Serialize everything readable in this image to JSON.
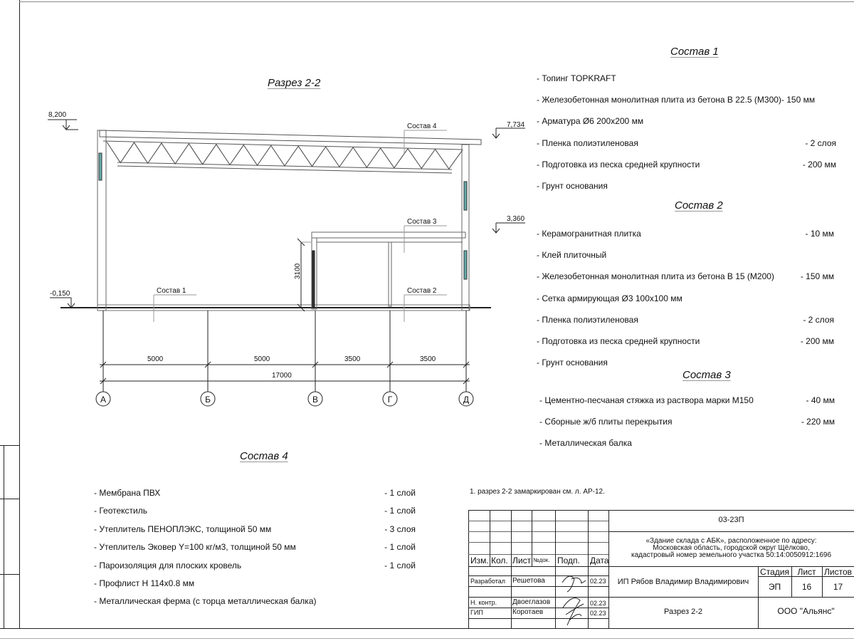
{
  "section_title": "Разрез 2-2",
  "drawing": {
    "levels": {
      "top": "8,200",
      "roof_right": "7,734",
      "mezzanine": "3,360",
      "ground": "-0,150"
    },
    "callouts": [
      "Состав 1",
      "Состав 2",
      "Состав 3",
      "Состав 4"
    ],
    "height_dim": "3100",
    "span_dims": [
      "5000",
      "5000",
      "3500",
      "3500"
    ],
    "total_dim": "17000",
    "axes": [
      "А",
      "Б",
      "В",
      "Г",
      "Д"
    ]
  },
  "composition_1": {
    "title": "Состав 1",
    "items": [
      {
        "name": "- Топинг TOPKRAFT",
        "value": ""
      },
      {
        "name": "- Железобетонная  монолитная плита из бетона  В 22.5 (М300)- 150 мм",
        "value": ""
      },
      {
        "name": "- Арматура Ø6 200х200 мм",
        "value": ""
      },
      {
        "name": "- Пленка полиэтиленовая",
        "value": "-  2 слоя"
      },
      {
        "name": "- Подготовка из песка средней  крупности",
        "value": "- 200 мм"
      },
      {
        "name": "- Грунт основания",
        "value": ""
      }
    ]
  },
  "composition_2": {
    "title": "Состав 2",
    "items": [
      {
        "name": "- Керамогранитная плитка",
        "value": "- 10 мм"
      },
      {
        "name": "- Клей плиточный",
        "value": ""
      },
      {
        "name": "- Железобетонная  монолитная плита из бетона В 15 (М200)",
        "value": "- 150 мм"
      },
      {
        "name": "- Сетка армирующая Ø3 100х100 мм",
        "value": ""
      },
      {
        "name": "- Пленка полиэтиленовая",
        "value": "-  2 слоя"
      },
      {
        "name": "- Подготовка из песка средней  крупности",
        "value": "- 200 мм"
      },
      {
        "name": "- Грунт основания",
        "value": ""
      }
    ]
  },
  "composition_3": {
    "title": "Состав 3",
    "items": [
      {
        "name": "- Цементно-песчаная стяжка  из раствора марки М150",
        "value": "- 40 мм"
      },
      {
        "name": "- Сборные ж/б плиты перекрытия",
        "value": "- 220 мм"
      },
      {
        "name": "- Металлическая  балка",
        "value": ""
      }
    ]
  },
  "composition_4": {
    "title": "Состав 4",
    "items": [
      {
        "name": "- Мембрана ПВХ",
        "value": "- 1 слой"
      },
      {
        "name": "- Геотекстиль",
        "value": "- 1 слой"
      },
      {
        "name": "- Утеплитель ПЕНОПЛЭКС, толщиной 50 мм",
        "value": "- 3 слоя"
      },
      {
        "name": "- Утеплитель Эковер Y=100 кг/м3, толщиной 50 мм",
        "value": "- 1 слой"
      },
      {
        "name": "- Пароизоляция для плоских кровель",
        "value": "- 1 слой"
      },
      {
        "name": "- Профлист Н 114х0.8 мм",
        "value": ""
      },
      {
        "name": "- Металлическая ферма (с торца металлическая балка)",
        "value": ""
      }
    ]
  },
  "note": "1. разрез 2-2 замаркирован см. л. АР-12.",
  "title_block": {
    "code": "03-23П",
    "address": [
      "«Здание склада с АБК», расположенное по адресу:",
      "Московская область, городской округ Щёлково,",
      "кадастровый номер земельного участка 50:14:0050912:1696"
    ],
    "headers": {
      "izm": "Изм.",
      "kol": "Кол.",
      "list": "Лист",
      "ndok": "№док.",
      "podp": "Подп.",
      "data": "Дата"
    },
    "rows": [
      {
        "role": "Разработал",
        "name": "Решетова",
        "date": "02.23"
      },
      {
        "role": "Н. контр.",
        "name": "Двоеглазов",
        "date": "02.23"
      },
      {
        "role": "ГИП",
        "name": "Коротаев",
        "date": "02.23"
      }
    ],
    "author": "ИП Рябов Владимир Владимирович",
    "stage_label": "Стадия",
    "sheet_label": "Лист",
    "sheets_label": "Листов",
    "stage": "ЭП",
    "sheet": "16",
    "sheets": "17",
    "sheet_title": "Разрез 2-2",
    "company": "ООО \"Альянс\""
  }
}
